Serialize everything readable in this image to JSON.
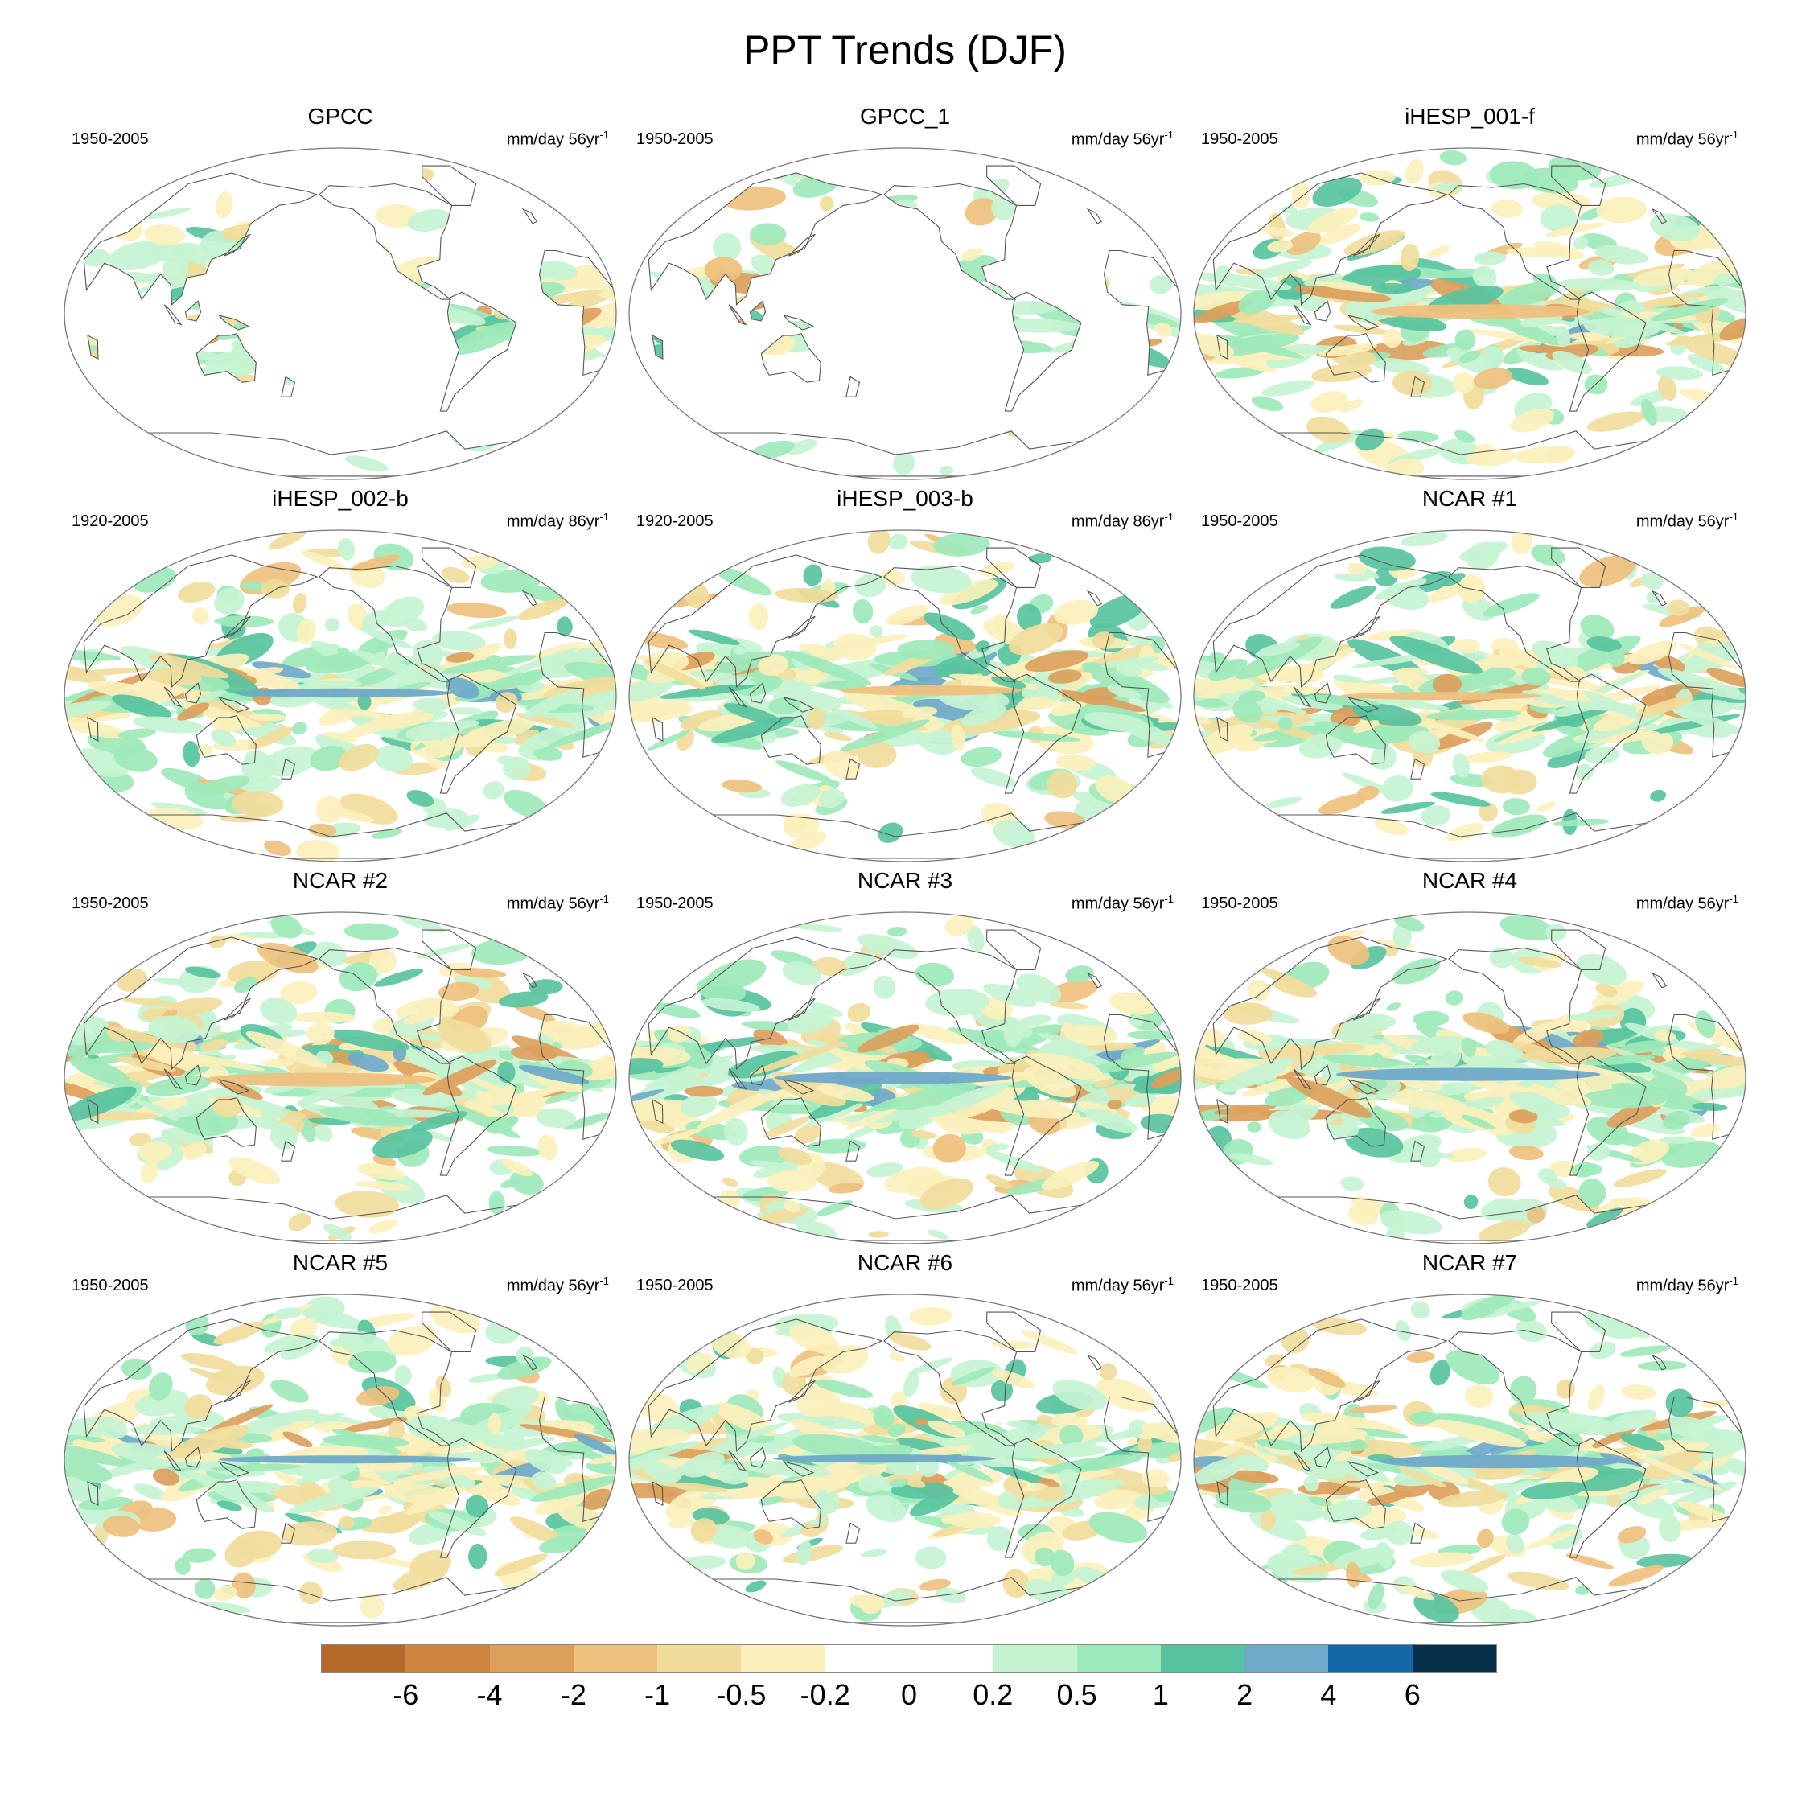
{
  "title": "PPT Trends (DJF)",
  "panels": [
    {
      "title": "GPCC",
      "period": "1950-2005",
      "units": "mm/day 56yr",
      "units_exp": "-1",
      "field": "land-only",
      "seed": 3
    },
    {
      "title": "GPCC_1",
      "period": "1950-2005",
      "units": "mm/day 56yr",
      "units_exp": "-1",
      "field": "land-only",
      "seed": 7
    },
    {
      "title": "iHESP_001-f",
      "period": "1950-2005",
      "units": "mm/day 56yr",
      "units_exp": "-1",
      "field": "global",
      "seed": 11
    },
    {
      "title": "iHESP_002-b",
      "period": "1920-2005",
      "units": "mm/day 86yr",
      "units_exp": "-1",
      "field": "global",
      "seed": 13
    },
    {
      "title": "iHESP_003-b",
      "period": "1920-2005",
      "units": "mm/day 86yr",
      "units_exp": "-1",
      "field": "global",
      "seed": 17
    },
    {
      "title": "NCAR #1",
      "period": "1950-2005",
      "units": "mm/day 56yr",
      "units_exp": "-1",
      "field": "global",
      "seed": 19
    },
    {
      "title": "NCAR #2",
      "period": "1950-2005",
      "units": "mm/day 56yr",
      "units_exp": "-1",
      "field": "global",
      "seed": 23
    },
    {
      "title": "NCAR #3",
      "period": "1950-2005",
      "units": "mm/day 56yr",
      "units_exp": "-1",
      "field": "global",
      "seed": 29
    },
    {
      "title": "NCAR #4",
      "period": "1950-2005",
      "units": "mm/day 56yr",
      "units_exp": "-1",
      "field": "global",
      "seed": 31
    },
    {
      "title": "NCAR #5",
      "period": "1950-2005",
      "units": "mm/day 56yr",
      "units_exp": "-1",
      "field": "global",
      "seed": 37
    },
    {
      "title": "NCAR #6",
      "period": "1950-2005",
      "units": "mm/day 56yr",
      "units_exp": "-1",
      "field": "global",
      "seed": 41
    },
    {
      "title": "NCAR #7",
      "period": "1950-2005",
      "units": "mm/day 56yr",
      "units_exp": "-1",
      "field": "global",
      "seed": 43
    }
  ],
  "colorbar": {
    "labels": [
      "-6",
      "-4",
      "-2",
      "-1",
      "-0.5",
      "-0.2",
      "0",
      "0.2",
      "0.5",
      "1",
      "2",
      "4",
      "6"
    ],
    "colors": [
      "#b5692a",
      "#cd8540",
      "#dca05c",
      "#eec07e",
      "#f1dc9c",
      "#fbf0bc",
      "#ffffff",
      "#ffffff",
      "#c6f3d2",
      "#9ee9bb",
      "#58c3a0",
      "#6fa9c9",
      "#1568a8",
      "#06304a"
    ]
  }
}
